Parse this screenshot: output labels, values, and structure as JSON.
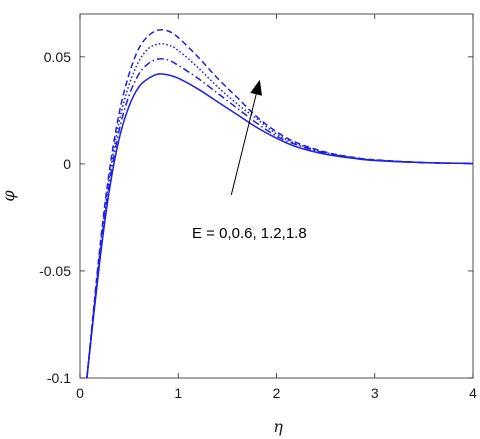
{
  "chart_data": {
    "type": "line",
    "title": "",
    "xlabel": "η",
    "ylabel": "φ",
    "xlim": [
      0,
      4
    ],
    "ylim": [
      -0.1,
      0.07
    ],
    "x_ticks": [
      0,
      1,
      2,
      3,
      4
    ],
    "x_tick_labels": [
      "0",
      "1",
      "2",
      "3",
      "4"
    ],
    "y_ticks": [
      -0.1,
      -0.05,
      0,
      0.05
    ],
    "y_tick_labels": [
      "-0.1",
      "-0.05",
      "0",
      "0.05"
    ],
    "grid": false,
    "legend": "none",
    "line_color": "#1f1fe0",
    "series": [
      {
        "E": 0,
        "dash": "solid",
        "x": [
          0.07,
          0.2,
          0.3,
          0.4,
          0.5,
          0.6,
          0.7,
          0.8,
          0.9,
          1.0,
          1.2,
          1.4,
          1.6,
          1.8,
          2.0,
          2.2,
          2.5,
          2.8,
          3.0,
          3.5,
          4.0
        ],
        "y": [
          -0.1,
          -0.046,
          -0.012,
          0.012,
          0.027,
          0.036,
          0.04,
          0.042,
          0.0415,
          0.04,
          0.035,
          0.029,
          0.023,
          0.017,
          0.012,
          0.008,
          0.0045,
          0.0025,
          0.0016,
          0.0006,
          0.0002
        ]
      },
      {
        "E": 0.6,
        "dash": "dash-dot",
        "x": [
          0.07,
          0.2,
          0.3,
          0.4,
          0.5,
          0.6,
          0.7,
          0.8,
          0.9,
          1.0,
          1.2,
          1.4,
          1.6,
          1.8,
          2.0,
          2.2,
          2.5,
          2.8,
          3.0,
          3.5,
          4.0
        ],
        "y": [
          -0.1,
          -0.044,
          -0.009,
          0.016,
          0.032,
          0.042,
          0.047,
          0.049,
          0.0485,
          0.046,
          0.04,
          0.033,
          0.026,
          0.019,
          0.013,
          0.009,
          0.005,
          0.0027,
          0.0017,
          0.0006,
          0.0002
        ]
      },
      {
        "E": 1.2,
        "dash": "dotted",
        "x": [
          0.07,
          0.2,
          0.3,
          0.4,
          0.5,
          0.6,
          0.7,
          0.8,
          0.9,
          1.0,
          1.2,
          1.4,
          1.6,
          1.8,
          2.0,
          2.2,
          2.5,
          2.8,
          3.0,
          3.5,
          4.0
        ],
        "y": [
          -0.1,
          -0.042,
          -0.006,
          0.02,
          0.037,
          0.048,
          0.054,
          0.056,
          0.0555,
          0.053,
          0.045,
          0.036,
          0.028,
          0.021,
          0.014,
          0.0095,
          0.0052,
          0.0028,
          0.0018,
          0.0006,
          0.0002
        ]
      },
      {
        "E": 1.8,
        "dash": "dashed",
        "x": [
          0.07,
          0.2,
          0.3,
          0.4,
          0.5,
          0.6,
          0.7,
          0.8,
          0.9,
          1.0,
          1.2,
          1.4,
          1.6,
          1.8,
          2.0,
          2.2,
          2.5,
          2.8,
          3.0,
          3.5,
          4.0
        ],
        "y": [
          -0.1,
          -0.04,
          -0.003,
          0.024,
          0.042,
          0.054,
          0.06,
          0.0625,
          0.062,
          0.059,
          0.05,
          0.04,
          0.031,
          0.022,
          0.015,
          0.01,
          0.0055,
          0.0029,
          0.0019,
          0.0006,
          0.0002
        ]
      }
    ],
    "annotation": {
      "text": "E = 0,0.6, 1.2,1.8",
      "label_pos": [
        1.14,
        -0.0345
      ],
      "arrow_from": [
        1.54,
        -0.0145
      ],
      "arrow_to": [
        1.83,
        0.0393
      ]
    }
  }
}
